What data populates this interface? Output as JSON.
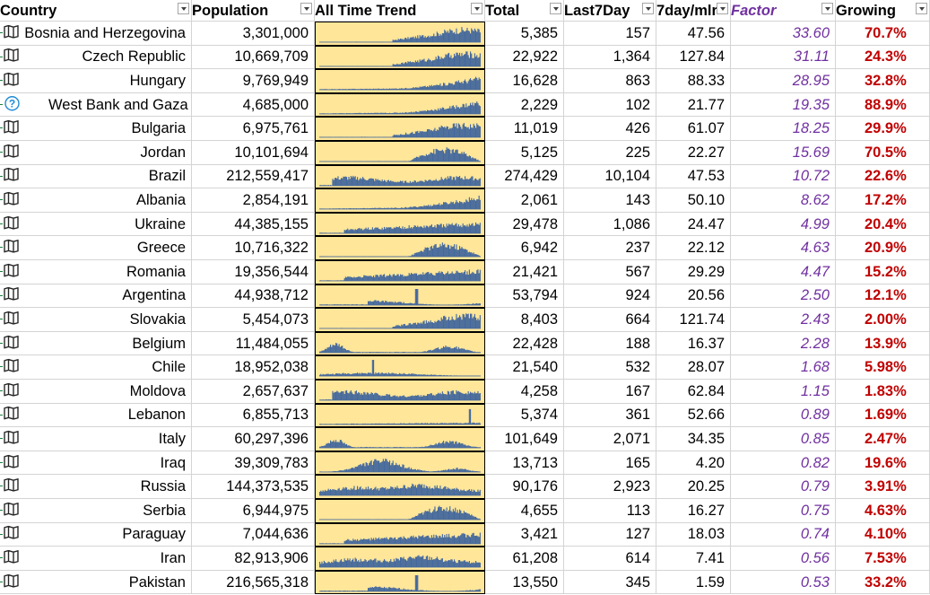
{
  "columns": [
    {
      "key": "country",
      "label": "Country"
    },
    {
      "key": "population",
      "label": "Population"
    },
    {
      "key": "trend",
      "label": "All Time Trend"
    },
    {
      "key": "total",
      "label": "Total"
    },
    {
      "key": "last7",
      "label": "Last7Day"
    },
    {
      "key": "per_mln",
      "label": "7day/mlr"
    },
    {
      "key": "factor",
      "label": "Factor"
    },
    {
      "key": "growing",
      "label": "Growing"
    }
  ],
  "colors": {
    "trend_fill": "#ffe699",
    "spark": "#44689d",
    "factor": "#7030a0",
    "growing": "#c00000"
  },
  "rows": [
    {
      "country": "Bosnia and Herzegovina",
      "icon": "map-icon",
      "population": "3,301,000",
      "total": "5,385",
      "last7": "157",
      "per_mln": "47.56",
      "factor": "33.60",
      "growing": "70.7%",
      "trend_shape": "late-dense"
    },
    {
      "country": "Czech Republic",
      "icon": "map-icon",
      "population": "10,669,709",
      "total": "22,922",
      "last7": "1,364",
      "per_mln": "127.84",
      "factor": "31.11",
      "growing": "24.3%",
      "trend_shape": "late-dense"
    },
    {
      "country": "Hungary",
      "icon": "map-icon",
      "population": "9,769,949",
      "total": "16,628",
      "last7": "863",
      "per_mln": "88.33",
      "factor": "28.95",
      "growing": "32.8%",
      "trend_shape": "late-rise"
    },
    {
      "country": "West Bank and Gaza",
      "icon": "question-icon",
      "population": "4,685,000",
      "total": "2,229",
      "last7": "102",
      "per_mln": "21.77",
      "factor": "19.35",
      "growing": "88.9%",
      "trend_shape": "late-rise"
    },
    {
      "country": "Bulgaria",
      "icon": "map-icon",
      "population": "6,975,761",
      "total": "11,019",
      "last7": "426",
      "per_mln": "61.07",
      "factor": "18.25",
      "growing": "29.9%",
      "trend_shape": "late-dense"
    },
    {
      "country": "Jordan",
      "icon": "map-icon",
      "population": "10,101,694",
      "total": "5,125",
      "last7": "225",
      "per_mln": "22.27",
      "factor": "15.69",
      "growing": "70.5%",
      "trend_shape": "late-hump"
    },
    {
      "country": "Brazil",
      "icon": "map-icon",
      "population": "212,559,417",
      "total": "274,429",
      "last7": "10,104",
      "per_mln": "47.53",
      "factor": "10.72",
      "growing": "22.6%",
      "trend_shape": "plateau"
    },
    {
      "country": "Albania",
      "icon": "map-icon",
      "population": "2,854,191",
      "total": "2,061",
      "last7": "143",
      "per_mln": "50.10",
      "factor": "8.62",
      "growing": "17.2%",
      "trend_shape": "late-rise"
    },
    {
      "country": "Ukraine",
      "icon": "map-icon",
      "population": "44,385,155",
      "total": "29,478",
      "last7": "1,086",
      "per_mln": "24.47",
      "factor": "4.99",
      "growing": "20.4%",
      "trend_shape": "plateau-late"
    },
    {
      "country": "Greece",
      "icon": "map-icon",
      "population": "10,716,322",
      "total": "6,942",
      "last7": "237",
      "per_mln": "22.12",
      "factor": "4.63",
      "growing": "20.9%",
      "trend_shape": "late-hump"
    },
    {
      "country": "Romania",
      "icon": "map-icon",
      "population": "19,356,544",
      "total": "21,421",
      "last7": "567",
      "per_mln": "29.29",
      "factor": "4.47",
      "growing": "15.2%",
      "trend_shape": "plateau-late"
    },
    {
      "country": "Argentina",
      "icon": "map-icon",
      "population": "44,938,712",
      "total": "53,794",
      "last7": "924",
      "per_mln": "20.56",
      "factor": "2.50",
      "growing": "12.1%",
      "trend_shape": "spike-mid"
    },
    {
      "country": "Slovakia",
      "icon": "map-icon",
      "population": "5,454,073",
      "total": "8,403",
      "last7": "664",
      "per_mln": "121.74",
      "factor": "2.43",
      "growing": "2.00%",
      "trend_shape": "late-dense"
    },
    {
      "country": "Belgium",
      "icon": "map-icon",
      "population": "11,484,055",
      "total": "22,428",
      "last7": "188",
      "per_mln": "16.37",
      "factor": "2.28",
      "growing": "13.9%",
      "trend_shape": "two-waves"
    },
    {
      "country": "Chile",
      "icon": "map-icon",
      "population": "18,952,038",
      "total": "21,540",
      "last7": "532",
      "per_mln": "28.07",
      "factor": "1.68",
      "growing": "5.98%",
      "trend_shape": "spike-early"
    },
    {
      "country": "Moldova",
      "icon": "map-icon",
      "population": "2,657,637",
      "total": "4,258",
      "last7": "167",
      "per_mln": "62.84",
      "factor": "1.15",
      "growing": "1.83%",
      "trend_shape": "plateau"
    },
    {
      "country": "Lebanon",
      "icon": "map-icon",
      "population": "6,855,713",
      "total": "5,374",
      "last7": "361",
      "per_mln": "52.66",
      "factor": "0.89",
      "growing": "1.69%",
      "trend_shape": "spike-late"
    },
    {
      "country": "Italy",
      "icon": "map-icon",
      "population": "60,297,396",
      "total": "101,649",
      "last7": "2,071",
      "per_mln": "34.35",
      "factor": "0.85",
      "growing": "2.47%",
      "trend_shape": "two-waves"
    },
    {
      "country": "Iraq",
      "icon": "map-icon",
      "population": "39,309,783",
      "total": "13,713",
      "last7": "165",
      "per_mln": "4.20",
      "factor": "0.82",
      "growing": "19.6%",
      "trend_shape": "mid-hump"
    },
    {
      "country": "Russia",
      "icon": "map-icon",
      "population": "144,373,535",
      "total": "90,176",
      "last7": "2,923",
      "per_mln": "20.25",
      "factor": "0.79",
      "growing": "3.91%",
      "trend_shape": "broad"
    },
    {
      "country": "Serbia",
      "icon": "map-icon",
      "population": "6,944,975",
      "total": "4,655",
      "last7": "113",
      "per_mln": "16.27",
      "factor": "0.75",
      "growing": "4.63%",
      "trend_shape": "late-hump"
    },
    {
      "country": "Paraguay",
      "icon": "map-icon",
      "population": "7,044,636",
      "total": "3,421",
      "last7": "127",
      "per_mln": "18.03",
      "factor": "0.74",
      "growing": "4.10%",
      "trend_shape": "plateau-late"
    },
    {
      "country": "Iran",
      "icon": "map-icon",
      "population": "82,913,906",
      "total": "61,208",
      "last7": "614",
      "per_mln": "7.41",
      "factor": "0.56",
      "growing": "7.53%",
      "trend_shape": "broad"
    },
    {
      "country": "Pakistan",
      "icon": "map-icon",
      "population": "216,565,318",
      "total": "13,550",
      "last7": "345",
      "per_mln": "1.59",
      "factor": "0.53",
      "growing": "33.2%",
      "trend_shape": "spike-mid"
    }
  ]
}
